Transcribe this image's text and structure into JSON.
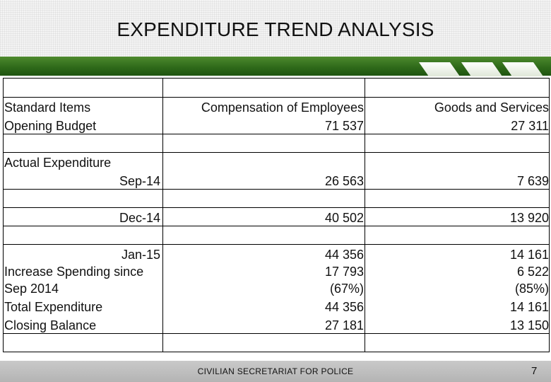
{
  "slide": {
    "title": "EXPENDITURE TREND ANALYSIS",
    "footer": "CIVILIAN SECRETARIAT FOR  POLICE",
    "page_number": "7",
    "accent_color": "#2f6a1a"
  },
  "table": {
    "col1": {
      "standard_items": "Standard Items",
      "opening_budget": "Opening Budget",
      "actual_expenditure": "Actual Expenditure",
      "sep14": "Sep-14",
      "dec14": "Dec-14",
      "jan15": "Jan-15",
      "increase_label": "Increase Spending since",
      "sep2014": "Sep 2014",
      "total_expenditure": "Total Expenditure",
      "closing_balance": "Closing Balance"
    },
    "compensation": {
      "header": "Compensation of Employees",
      "opening_budget": "71 537",
      "sep14": "26 563",
      "dec14": "40 502",
      "jan15": "44 356",
      "increase": "17 793",
      "increase_pct": "(67%)",
      "total": "44 356",
      "closing": "27 181"
    },
    "goods": {
      "header": "Goods and Services",
      "opening_budget": "27 311",
      "sep14": "7 639",
      "dec14": "13 920",
      "jan15": "14 161",
      "increase": "6 522",
      "increase_pct": "(85%)",
      "total": "14 161",
      "closing": "13 150"
    }
  }
}
